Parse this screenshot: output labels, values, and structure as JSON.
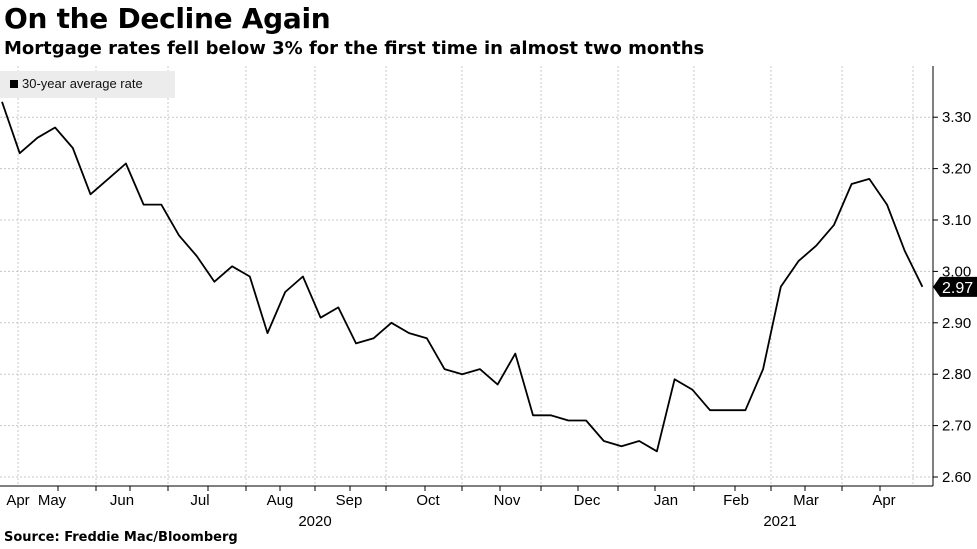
{
  "header": {
    "title": "On the Decline Again",
    "subtitle": "Mortgage rates fell below 3% for the first time in almost two months"
  },
  "footer": {
    "source": "Source: Freddie Mac/Bloomberg"
  },
  "legend": {
    "label": "30-year average rate"
  },
  "colors": {
    "line": "#000000",
    "grid": "#c8c8c8",
    "legend_bg": "#ececec",
    "callout_bg": "#000000",
    "callout_text": "#ffffff"
  },
  "chart_data": {
    "type": "line",
    "title": "On the Decline Again",
    "subtitle": "Mortgage rates fell below 3% for the first time in almost two months",
    "ylim": [
      2.6,
      3.35
    ],
    "yticks": [
      2.6,
      2.7,
      2.8,
      2.9,
      3.0,
      3.1,
      3.2,
      3.3
    ],
    "ytick_labels": [
      "2.60",
      "2.70",
      "2.80",
      "2.90",
      "3.00",
      "3.10",
      "3.20",
      "3.30"
    ],
    "x_month_labels": [
      "Apr",
      "May",
      "Jun",
      "Jul",
      "Aug",
      "Sep",
      "Oct",
      "Nov",
      "Dec",
      "Jan",
      "Feb",
      "Mar",
      "Apr"
    ],
    "x_year_labels": [
      "2020",
      "2021"
    ],
    "grid": true,
    "legend_position": "top-left",
    "last_value_label": "2.97",
    "series": [
      {
        "name": "30-year average rate",
        "values": [
          3.33,
          3.23,
          3.26,
          3.28,
          3.24,
          3.15,
          3.18,
          3.21,
          3.13,
          3.13,
          3.07,
          3.03,
          2.98,
          3.01,
          2.99,
          2.88,
          2.96,
          2.99,
          2.91,
          2.93,
          2.86,
          2.87,
          2.9,
          2.88,
          2.87,
          2.81,
          2.8,
          2.81,
          2.78,
          2.84,
          2.72,
          2.72,
          2.71,
          2.71,
          2.67,
          2.66,
          2.67,
          2.65,
          2.79,
          2.77,
          2.73,
          2.73,
          2.73,
          2.81,
          2.97,
          3.02,
          3.05,
          3.09,
          3.17,
          3.18,
          3.13,
          3.04,
          2.97
        ]
      }
    ]
  }
}
